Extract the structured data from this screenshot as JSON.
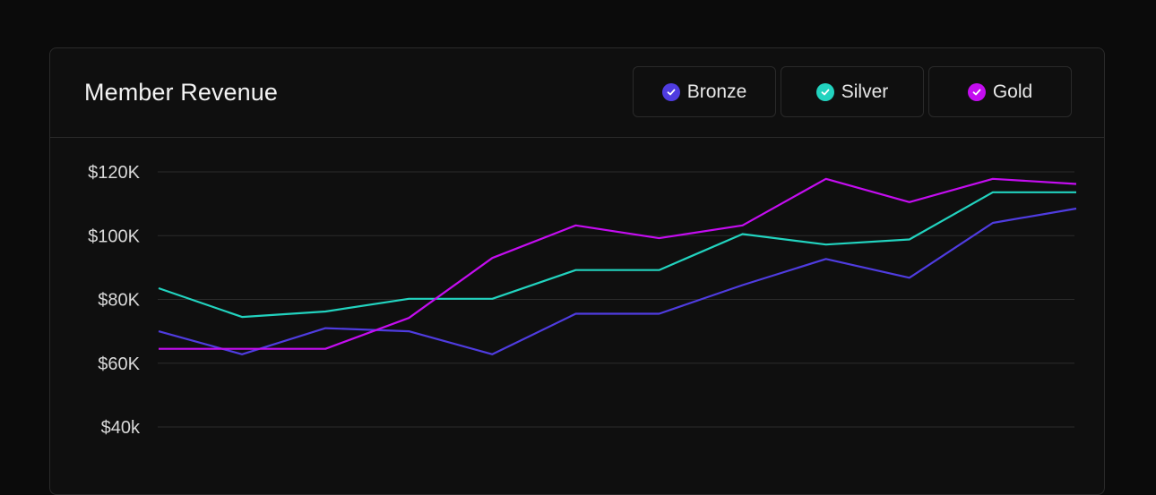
{
  "card": {
    "title": "Member Revenue"
  },
  "legend": [
    {
      "label": "Bronze",
      "color": "#4f3ce0",
      "icon": "check-circle-icon"
    },
    {
      "label": "Silver",
      "color": "#22d3bf",
      "icon": "check-circle-icon"
    },
    {
      "label": "Gold",
      "color": "#c40df0",
      "icon": "check-circle-icon"
    }
  ],
  "colors": {
    "background": "#0b0b0b",
    "card": "#0f0f0f",
    "border": "#2a2a2a",
    "grid": "#2b2b2b",
    "tick_text": "#d9d9d9"
  },
  "chart_data": {
    "type": "line",
    "title": "Member Revenue",
    "xlabel": "",
    "ylabel": "",
    "grid": true,
    "legend_position": "top-right",
    "x": [
      1,
      2,
      3,
      4,
      5,
      6,
      7,
      8,
      9,
      10,
      11,
      12
    ],
    "y_ticks": [
      {
        "value": 120000,
        "label": "$120K"
      },
      {
        "value": 100000,
        "label": "$100K"
      },
      {
        "value": 80000,
        "label": "$80K"
      },
      {
        "value": 60000,
        "label": "$60K"
      },
      {
        "value": 40000,
        "label": "$40k"
      }
    ],
    "series": [
      {
        "name": "Bronze",
        "color": "#4f3ce0",
        "values": [
          70000,
          62800,
          71000,
          70000,
          62800,
          75500,
          75500,
          84500,
          92700,
          86800,
          104000,
          108500
        ]
      },
      {
        "name": "Silver",
        "color": "#22d3bf",
        "values": [
          83500,
          74500,
          76200,
          80200,
          80200,
          89200,
          89200,
          100500,
          97200,
          98800,
          113600,
          113600
        ]
      },
      {
        "name": "Gold",
        "color": "#c40df0",
        "values": [
          64500,
          64500,
          64500,
          74200,
          93000,
          103200,
          99200,
          103200,
          117800,
          110500,
          117800,
          116200
        ]
      }
    ]
  }
}
